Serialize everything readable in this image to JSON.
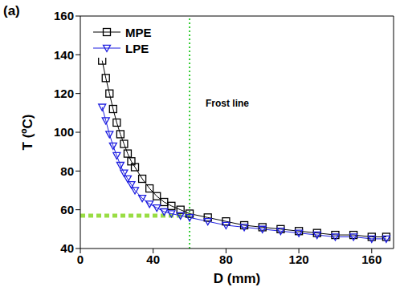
{
  "chart_data": {
    "type": "line",
    "title": "(a)",
    "x_label": "D (mm)",
    "y_label": "T (ºC)",
    "xlim": [
      0,
      172
    ],
    "xticks": [
      0,
      40,
      80,
      120,
      160
    ],
    "ylim": [
      40,
      160
    ],
    "yticks": [
      40,
      60,
      80,
      100,
      120,
      140,
      160
    ],
    "grid": false,
    "legend": "upper left",
    "series": [
      {
        "name": "MPE",
        "color": "#000000",
        "marker": "square",
        "x": [
          12,
          14,
          16,
          18,
          20,
          22,
          24,
          26,
          28,
          30,
          34,
          38,
          42,
          46,
          50,
          55,
          60,
          70,
          80,
          90,
          100,
          110,
          120,
          130,
          140,
          150,
          160,
          168
        ],
        "values": [
          137,
          128,
          120,
          112,
          105,
          99,
          94,
          89,
          85,
          82,
          76,
          71,
          67,
          64,
          62,
          60,
          58,
          56,
          54,
          52,
          51,
          50,
          49,
          48,
          47,
          47,
          46,
          46
        ]
      },
      {
        "name": "LPE",
        "color": "#1f1fe0",
        "marker": "triangle",
        "x": [
          12,
          14,
          16,
          18,
          20,
          22,
          24,
          26,
          28,
          30,
          34,
          38,
          42,
          46,
          50,
          55,
          60,
          70,
          80,
          90,
          100,
          110,
          120,
          130,
          140,
          150,
          160,
          168
        ],
        "values": [
          113,
          106,
          99,
          93,
          88,
          83,
          79,
          76,
          73,
          70,
          66,
          63,
          61,
          59,
          58,
          57,
          56,
          54,
          52,
          51,
          50,
          49,
          48,
          47,
          46,
          46,
          45,
          45
        ]
      }
    ],
    "reference_lines": [
      {
        "x": 60,
        "color": "#33cc33",
        "line_style": "dotted"
      },
      {
        "y": 57,
        "x_from": 0,
        "x_to": 60,
        "color": "#99dd44",
        "line_style": "dashed"
      }
    ],
    "annotations": [
      {
        "text": "Frost line"
      }
    ]
  }
}
